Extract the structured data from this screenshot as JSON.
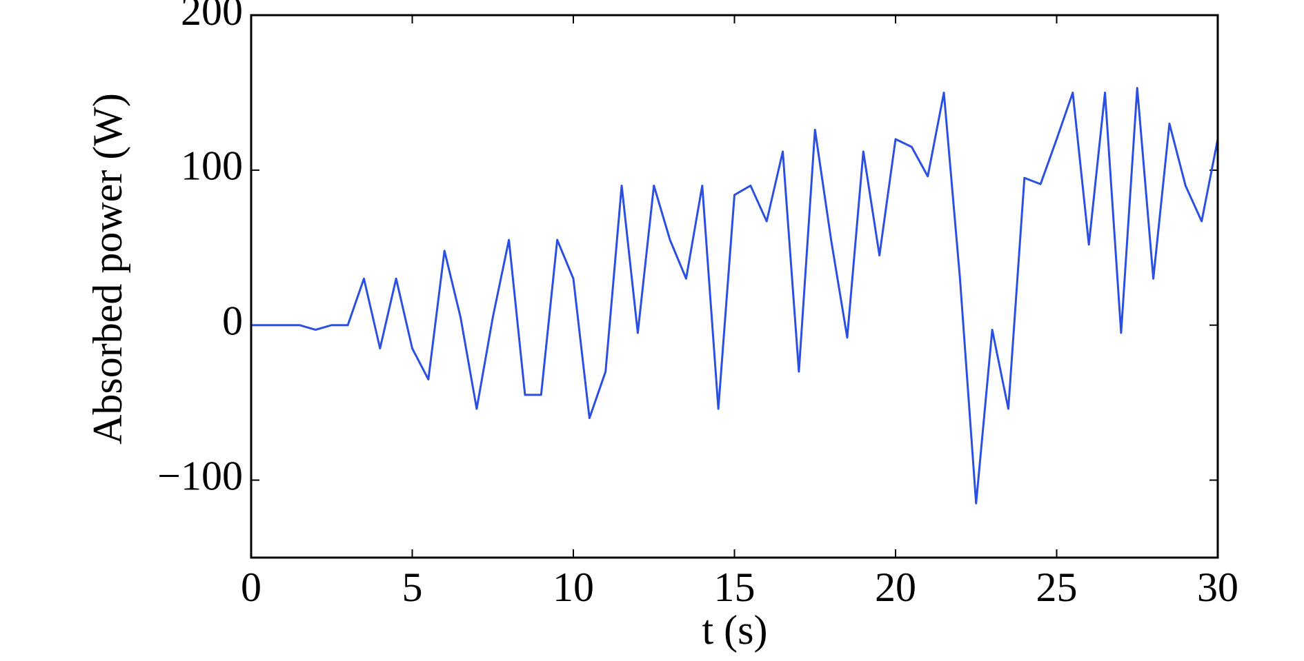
{
  "chart_data": {
    "type": "line",
    "xlabel": "t (s)",
    "ylabel": "Absorbed power (W)",
    "x": [
      0,
      0.5,
      1,
      1.5,
      2,
      2.5,
      3,
      3.5,
      4,
      4.5,
      5,
      5.5,
      6,
      6.5,
      7,
      7.5,
      8,
      8.5,
      9,
      9.5,
      10,
      10.5,
      11,
      11.5,
      12,
      12.5,
      13,
      13.5,
      14,
      14.5,
      15,
      15.5,
      16,
      16.5,
      17,
      17.5,
      18,
      18.5,
      19,
      19.5,
      20,
      20.5,
      21,
      21.5,
      22,
      22.5,
      23,
      23.5,
      24,
      24.5,
      25,
      25.5,
      26,
      26.5,
      27,
      27.5,
      28,
      28.5,
      29,
      29.5,
      30
    ],
    "series": [
      {
        "name": "Absorbed power",
        "color": "#2b4fe0",
        "values": [
          0,
          0,
          0,
          0,
          -3,
          0,
          0,
          30,
          -15,
          30,
          -15,
          -35,
          48,
          5,
          -54,
          5,
          55,
          -45,
          -45,
          55,
          30,
          -60,
          -30,
          90,
          -5,
          90,
          55,
          30,
          90,
          -54,
          84,
          90,
          67,
          112,
          -30,
          126,
          55,
          -8,
          112,
          45,
          120,
          115,
          96,
          150,
          30,
          -115,
          -3,
          -54,
          95,
          91,
          120,
          150,
          52,
          150,
          -5,
          153,
          30,
          130,
          90,
          67,
          120
        ]
      }
    ],
    "xlim": [
      0,
      30
    ],
    "xticks": [
      0,
      5,
      10,
      15,
      20,
      25,
      30
    ],
    "ylim": [
      -150,
      200
    ],
    "yticks": [
      200,
      100,
      0,
      {
        "value": -100,
        "label": "−100"
      }
    ],
    "grid": false
  }
}
